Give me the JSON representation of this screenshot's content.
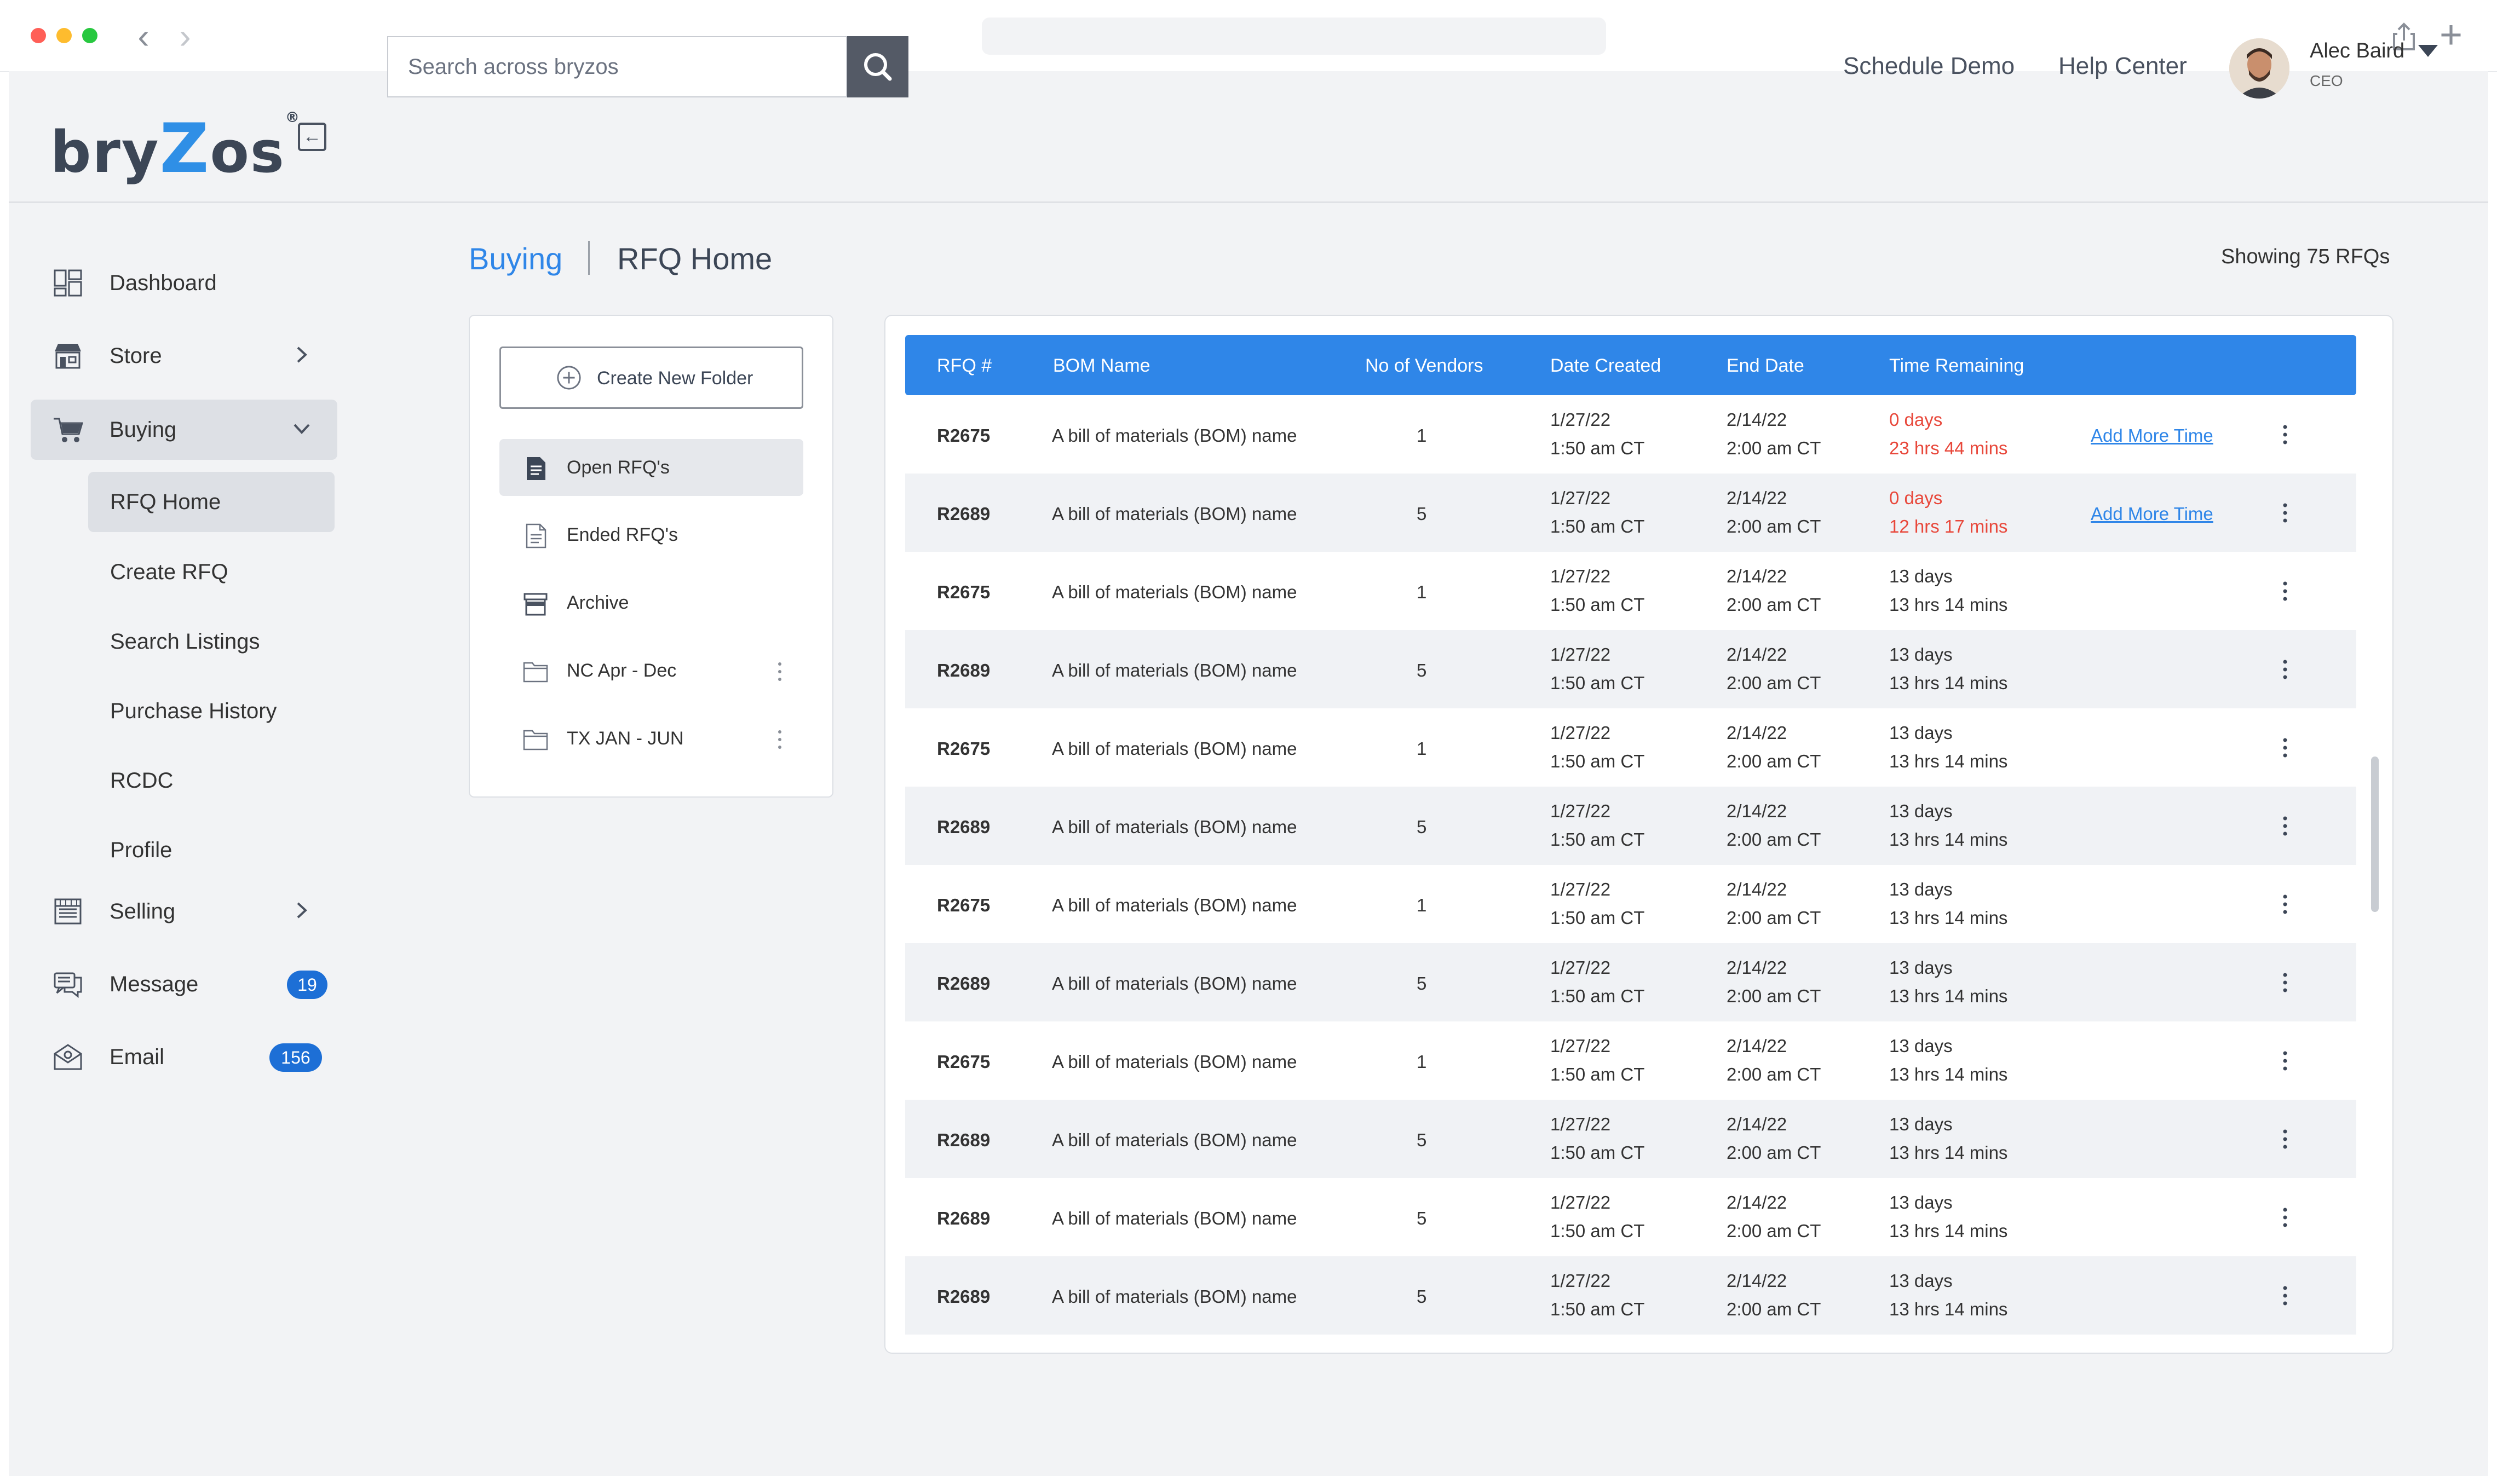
{
  "header": {
    "search_placeholder": "Search across bryzos",
    "schedule_demo": "Schedule Demo",
    "help_center": "Help Center",
    "user": {
      "name": "Alec Baird",
      "role": "CEO"
    }
  },
  "logo": {
    "part1": "bry",
    "part2": "Z",
    "part3": "os",
    "reg": "®"
  },
  "sidebar": {
    "items": [
      {
        "label": "Dashboard"
      },
      {
        "label": "Store"
      },
      {
        "label": "Buying"
      },
      {
        "label": "Selling"
      },
      {
        "label": "Message",
        "badge": "19"
      },
      {
        "label": "Email",
        "badge": "156"
      }
    ],
    "buying_sub": [
      {
        "label": "RFQ Home"
      },
      {
        "label": "Create RFQ"
      },
      {
        "label": "Search Listings"
      },
      {
        "label": "Purchase History"
      },
      {
        "label": "RCDC"
      },
      {
        "label": "Profile"
      }
    ]
  },
  "page": {
    "breadcrumb_parent": "Buying",
    "breadcrumb_current": "RFQ Home",
    "showing": "Showing 75 RFQs"
  },
  "folders": {
    "create_label": "Create New Folder",
    "items": [
      {
        "label": "Open RFQ's"
      },
      {
        "label": "Ended RFQ's"
      },
      {
        "label": "Archive"
      },
      {
        "label": "NC Apr - Dec"
      },
      {
        "label": "TX JAN - JUN"
      }
    ]
  },
  "table": {
    "columns": [
      "RFQ #",
      "BOM Name",
      "No of Vendors",
      "Date Created",
      "End Date",
      "Time Remaining"
    ],
    "add_more_time": "Add More Time",
    "rows": [
      {
        "rfq": "R2675",
        "bom": "A bill of materials (BOM) name",
        "vendors": "1",
        "created_date": "1/27/22",
        "created_time": "1:50 am CT",
        "end_date": "2/14/22",
        "end_time": "2:00 am CT",
        "days": "0 days",
        "time": "23 hrs 44 mins",
        "urgent": true
      },
      {
        "rfq": "R2689",
        "bom": "A bill of materials (BOM) name",
        "vendors": "5",
        "created_date": "1/27/22",
        "created_time": "1:50 am CT",
        "end_date": "2/14/22",
        "end_time": "2:00 am CT",
        "days": "0 days",
        "time": "12 hrs 17 mins",
        "urgent": true
      },
      {
        "rfq": "R2675",
        "bom": "A bill of materials (BOM) name",
        "vendors": "1",
        "created_date": "1/27/22",
        "created_time": "1:50 am CT",
        "end_date": "2/14/22",
        "end_time": "2:00 am CT",
        "days": "13 days",
        "time": "13 hrs 14 mins",
        "urgent": false
      },
      {
        "rfq": "R2689",
        "bom": "A bill of materials (BOM) name",
        "vendors": "5",
        "created_date": "1/27/22",
        "created_time": "1:50 am CT",
        "end_date": "2/14/22",
        "end_time": "2:00 am CT",
        "days": "13 days",
        "time": "13 hrs 14 mins",
        "urgent": false
      },
      {
        "rfq": "R2675",
        "bom": "A bill of materials (BOM) name",
        "vendors": "1",
        "created_date": "1/27/22",
        "created_time": "1:50 am CT",
        "end_date": "2/14/22",
        "end_time": "2:00 am CT",
        "days": "13 days",
        "time": "13 hrs 14 mins",
        "urgent": false
      },
      {
        "rfq": "R2689",
        "bom": "A bill of materials (BOM) name",
        "vendors": "5",
        "created_date": "1/27/22",
        "created_time": "1:50 am CT",
        "end_date": "2/14/22",
        "end_time": "2:00 am CT",
        "days": "13 days",
        "time": "13 hrs 14 mins",
        "urgent": false
      },
      {
        "rfq": "R2675",
        "bom": "A bill of materials (BOM) name",
        "vendors": "1",
        "created_date": "1/27/22",
        "created_time": "1:50 am CT",
        "end_date": "2/14/22",
        "end_time": "2:00 am CT",
        "days": "13 days",
        "time": "13 hrs 14 mins",
        "urgent": false
      },
      {
        "rfq": "R2689",
        "bom": "A bill of materials (BOM) name",
        "vendors": "5",
        "created_date": "1/27/22",
        "created_time": "1:50 am CT",
        "end_date": "2/14/22",
        "end_time": "2:00 am CT",
        "days": "13 days",
        "time": "13 hrs 14 mins",
        "urgent": false
      },
      {
        "rfq": "R2675",
        "bom": "A bill of materials (BOM) name",
        "vendors": "1",
        "created_date": "1/27/22",
        "created_time": "1:50 am CT",
        "end_date": "2/14/22",
        "end_time": "2:00 am CT",
        "days": "13 days",
        "time": "13 hrs 14 mins",
        "urgent": false
      },
      {
        "rfq": "R2689",
        "bom": "A bill of materials (BOM) name",
        "vendors": "5",
        "created_date": "1/27/22",
        "created_time": "1:50 am CT",
        "end_date": "2/14/22",
        "end_time": "2:00 am CT",
        "days": "13 days",
        "time": "13 hrs 14 mins",
        "urgent": false
      },
      {
        "rfq": "R2689",
        "bom": "A bill of materials (BOM) name",
        "vendors": "5",
        "created_date": "1/27/22",
        "created_time": "1:50 am CT",
        "end_date": "2/14/22",
        "end_time": "2:00 am CT",
        "days": "13 days",
        "time": "13 hrs 14 mins",
        "urgent": false
      },
      {
        "rfq": "R2689",
        "bom": "A bill of materials (BOM) name",
        "vendors": "5",
        "created_date": "1/27/22",
        "created_time": "1:50 am CT",
        "end_date": "2/14/22",
        "end_time": "2:00 am CT",
        "days": "13 days",
        "time": "13 hrs 14 mins",
        "urgent": false
      }
    ]
  },
  "colors": {
    "accent": "#2f86e8",
    "urgent": "#e8483b",
    "badge": "#1d6fd6",
    "sidebar_bg": "#f2f3f5"
  },
  "icons": {
    "dashboard": "dashboard-icon",
    "store": "store-icon",
    "buying": "cart-icon",
    "selling": "storefront-icon",
    "message": "message-icon",
    "email": "email-icon"
  }
}
